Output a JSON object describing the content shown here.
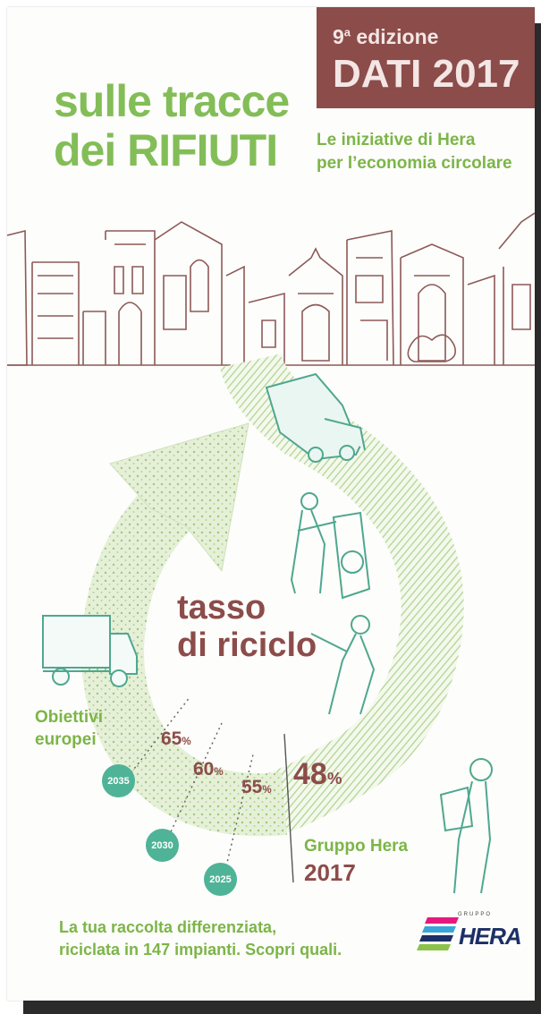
{
  "header": {
    "edition": "9",
    "edition_sup": "a",
    "edition_word": " edizione",
    "year_label": "DATI 2017",
    "title_line1": "sulle tracce",
    "title_line2": "dei RIFIUTI",
    "subtitle_line1": "Le iniziative di Hera",
    "subtitle_line2": "per l’economia circolare"
  },
  "cycle": {
    "center_line1": "tasso",
    "center_line2": "di riciclo",
    "targets": [
      {
        "value": "65",
        "unit": "%",
        "year": "2035"
      },
      {
        "value": "60",
        "unit": "%",
        "year": "2030"
      },
      {
        "value": "55",
        "unit": "%",
        "year": "2025"
      }
    ],
    "current": {
      "value": "48",
      "unit": "%"
    },
    "targets_label_line1": "Obiettivi",
    "targets_label_line2": "europei",
    "current_label_line1": "Gruppo Hera",
    "current_label_line2": "2017"
  },
  "footer": {
    "line1": "La tua raccolta differenziata,",
    "line2": "riciclata in 147 impianti. Scopri quali.",
    "logo_group": "GRUPPO",
    "logo_name": "HERA"
  },
  "colors": {
    "brown": "#8b4c4a",
    "green": "#83bd57",
    "teal": "#4fb397",
    "navy": "#1c2f66"
  }
}
